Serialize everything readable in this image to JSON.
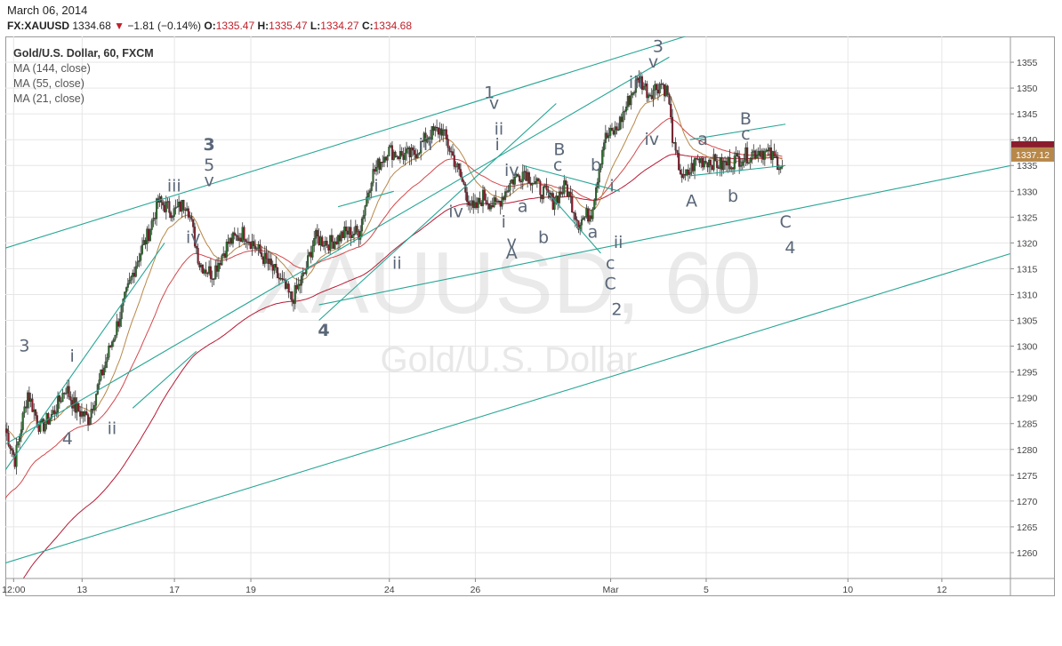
{
  "header": {
    "date": "March 06, 2014",
    "symbol": "FX:XAUUSD",
    "last": "1334.68",
    "change_arrow": "▼",
    "change": "−1.81 (−0.14%)",
    "o_label": "O:",
    "o": "1335.47",
    "h_label": "H:",
    "h": "1335.47",
    "l_label": "L:",
    "l": "1334.27",
    "c_label": "C:",
    "c": "1334.68"
  },
  "legend": {
    "title": "Gold/U.S. Dollar, 60, FXCM",
    "ma1": "MA (144, close)",
    "ma2": "MA (55, close)",
    "ma3": "MA (21, close)"
  },
  "watermark": {
    "line1": "XAUUSD, 60",
    "line2": "Gold/U.S. Dollar"
  },
  "colors": {
    "up": "#2e6e2e",
    "down": "#8b1c2c",
    "ma144": "#b81a34",
    "ma55": "#d4484c",
    "ma21": "#b8884a",
    "channel": "#26a695",
    "label": "#5a6778",
    "grid": "#e6e6e6",
    "price_badge": "#b8884a"
  },
  "chart_data": {
    "type": "candlestick",
    "title": "Gold/U.S. Dollar, 60, FXCM",
    "timeframe": "60",
    "x_ticks": [
      "12:00",
      "13",
      "17",
      "19",
      "24",
      "26",
      "Mar",
      "5",
      "10",
      "12"
    ],
    "y_ticks": [
      1260,
      1265,
      1270,
      1275,
      1280,
      1285,
      1290,
      1295,
      1300,
      1305,
      1310,
      1315,
      1320,
      1325,
      1330,
      1335,
      1340,
      1345,
      1350,
      1355
    ],
    "ylim": [
      1255,
      1360
    ],
    "last_price": "1337.12",
    "anchors": [
      [
        0,
        1284
      ],
      [
        6,
        1278
      ],
      [
        14,
        1291
      ],
      [
        22,
        1284
      ],
      [
        30,
        1287
      ],
      [
        38,
        1292
      ],
      [
        44,
        1288
      ],
      [
        52,
        1286
      ],
      [
        62,
        1296
      ],
      [
        72,
        1306
      ],
      [
        82,
        1316
      ],
      [
        90,
        1322
      ],
      [
        96,
        1328
      ],
      [
        106,
        1326
      ],
      [
        114,
        1328
      ],
      [
        122,
        1316
      ],
      [
        130,
        1314
      ],
      [
        140,
        1320
      ],
      [
        150,
        1322
      ],
      [
        160,
        1318
      ],
      [
        170,
        1314
      ],
      [
        180,
        1309
      ],
      [
        188,
        1314
      ],
      [
        194,
        1321
      ],
      [
        204,
        1320
      ],
      [
        214,
        1322
      ],
      [
        222,
        1322
      ],
      [
        230,
        1333
      ],
      [
        240,
        1338
      ],
      [
        248,
        1337
      ],
      [
        256,
        1337
      ],
      [
        266,
        1341
      ],
      [
        274,
        1342
      ],
      [
        282,
        1336
      ],
      [
        288,
        1331
      ],
      [
        294,
        1326
      ],
      [
        300,
        1329
      ],
      [
        308,
        1327
      ],
      [
        318,
        1332
      ],
      [
        326,
        1334
      ],
      [
        334,
        1331
      ],
      [
        344,
        1328
      ],
      [
        352,
        1331
      ],
      [
        360,
        1324
      ],
      [
        368,
        1326
      ],
      [
        376,
        1340
      ],
      [
        384,
        1342
      ],
      [
        392,
        1348
      ],
      [
        398,
        1352
      ],
      [
        404,
        1349
      ],
      [
        412,
        1351
      ],
      [
        416,
        1349
      ],
      [
        420,
        1338
      ],
      [
        426,
        1332
      ],
      [
        434,
        1336
      ],
      [
        442,
        1336
      ],
      [
        450,
        1335
      ],
      [
        458,
        1336
      ],
      [
        466,
        1337
      ],
      [
        474,
        1338
      ],
      [
        480,
        1337
      ],
      [
        488,
        1335
      ]
    ],
    "trendlines": [
      {
        "from": [
          0,
          1319
        ],
        "to": [
          427,
          1360
        ]
      },
      {
        "from": [
          0,
          1281
        ],
        "to": [
          417,
          1356
        ]
      },
      {
        "from": [
          197,
          1308
        ],
        "to": [
          632,
          1335
        ]
      },
      {
        "from": [
          0,
          1258
        ],
        "to": [
          632,
          1318
        ]
      },
      {
        "from": [
          0,
          1276
        ],
        "to": [
          100,
          1320
        ]
      },
      {
        "from": [
          80,
          1288
        ],
        "to": [
          120,
          1299
        ]
      },
      {
        "from": [
          197,
          1305
        ],
        "to": [
          346,
          1347
        ]
      },
      {
        "from": [
          209,
          1327
        ],
        "to": [
          244,
          1330
        ]
      },
      {
        "from": [
          325,
          1335
        ],
        "to": [
          386,
          1330
        ]
      },
      {
        "from": [
          340,
          1330
        ],
        "to": [
          374,
          1318
        ]
      },
      {
        "from": [
          430,
          1333
        ],
        "to": [
          490,
          1335
        ]
      },
      {
        "from": [
          430,
          1340
        ],
        "to": [
          490,
          1343
        ]
      }
    ],
    "wave_labels": [
      {
        "text": "3",
        "bold": true,
        "t": 128,
        "p": 1338
      },
      {
        "text": "5",
        "t": 128,
        "p": 1334
      },
      {
        "text": "v",
        "t": 128,
        "p": 1331
      },
      {
        "text": "iii",
        "t": 106,
        "p": 1330
      },
      {
        "text": "iv",
        "t": 118,
        "p": 1320
      },
      {
        "text": "3",
        "t": 12,
        "p": 1299
      },
      {
        "text": "i",
        "t": 42,
        "p": 1297
      },
      {
        "text": "4",
        "t": 39,
        "p": 1281
      },
      {
        "text": "ii",
        "t": 67,
        "p": 1283
      },
      {
        "text": "4",
        "bold": true,
        "t": 200,
        "p": 1302
      },
      {
        "text": "i",
        "t": 233,
        "p": 1330
      },
      {
        "text": "ii",
        "t": 246,
        "p": 1315
      },
      {
        "text": "iii",
        "t": 264,
        "p": 1338
      },
      {
        "text": "iv",
        "t": 283,
        "p": 1325
      },
      {
        "text": "1",
        "t": 304,
        "p": 1348
      },
      {
        "text": "v",
        "t": 307,
        "p": 1346
      },
      {
        "text": "ii",
        "t": 310,
        "p": 1341
      },
      {
        "text": "i",
        "t": 309,
        "p": 1338
      },
      {
        "text": "iv",
        "t": 318,
        "p": 1333
      },
      {
        "text": "a",
        "t": 325,
        "p": 1326
      },
      {
        "text": "i",
        "t": 313,
        "p": 1323
      },
      {
        "text": "v",
        "t": 318,
        "p": 1319
      },
      {
        "text": "A",
        "t": 318,
        "p": 1317
      },
      {
        "text": "b",
        "t": 338,
        "p": 1320
      },
      {
        "text": "B",
        "t": 348,
        "p": 1337
      },
      {
        "text": "c",
        "t": 347,
        "p": 1334
      },
      {
        "text": "b",
        "t": 371,
        "p": 1334
      },
      {
        "text": "a",
        "t": 369,
        "p": 1321
      },
      {
        "text": "i",
        "t": 381,
        "p": 1330
      },
      {
        "text": "ii",
        "t": 385,
        "p": 1319
      },
      {
        "text": "c",
        "t": 380,
        "p": 1315
      },
      {
        "text": "C",
        "t": 380,
        "p": 1311
      },
      {
        "text": "2",
        "t": 384,
        "p": 1306
      },
      {
        "text": "3",
        "t": 410,
        "p": 1357
      },
      {
        "text": "v",
        "t": 407,
        "p": 1354
      },
      {
        "text": "iii",
        "t": 396,
        "p": 1350
      },
      {
        "text": "iv",
        "t": 406,
        "p": 1339
      },
      {
        "text": "a",
        "t": 438,
        "p": 1339
      },
      {
        "text": "B",
        "t": 465,
        "p": 1343
      },
      {
        "text": "c",
        "t": 465,
        "p": 1340
      },
      {
        "text": "A",
        "t": 431,
        "p": 1327
      },
      {
        "text": "b",
        "t": 457,
        "p": 1328
      },
      {
        "text": "C",
        "t": 490,
        "p": 1323
      },
      {
        "text": "4",
        "t": 493,
        "p": 1318
      }
    ]
  }
}
